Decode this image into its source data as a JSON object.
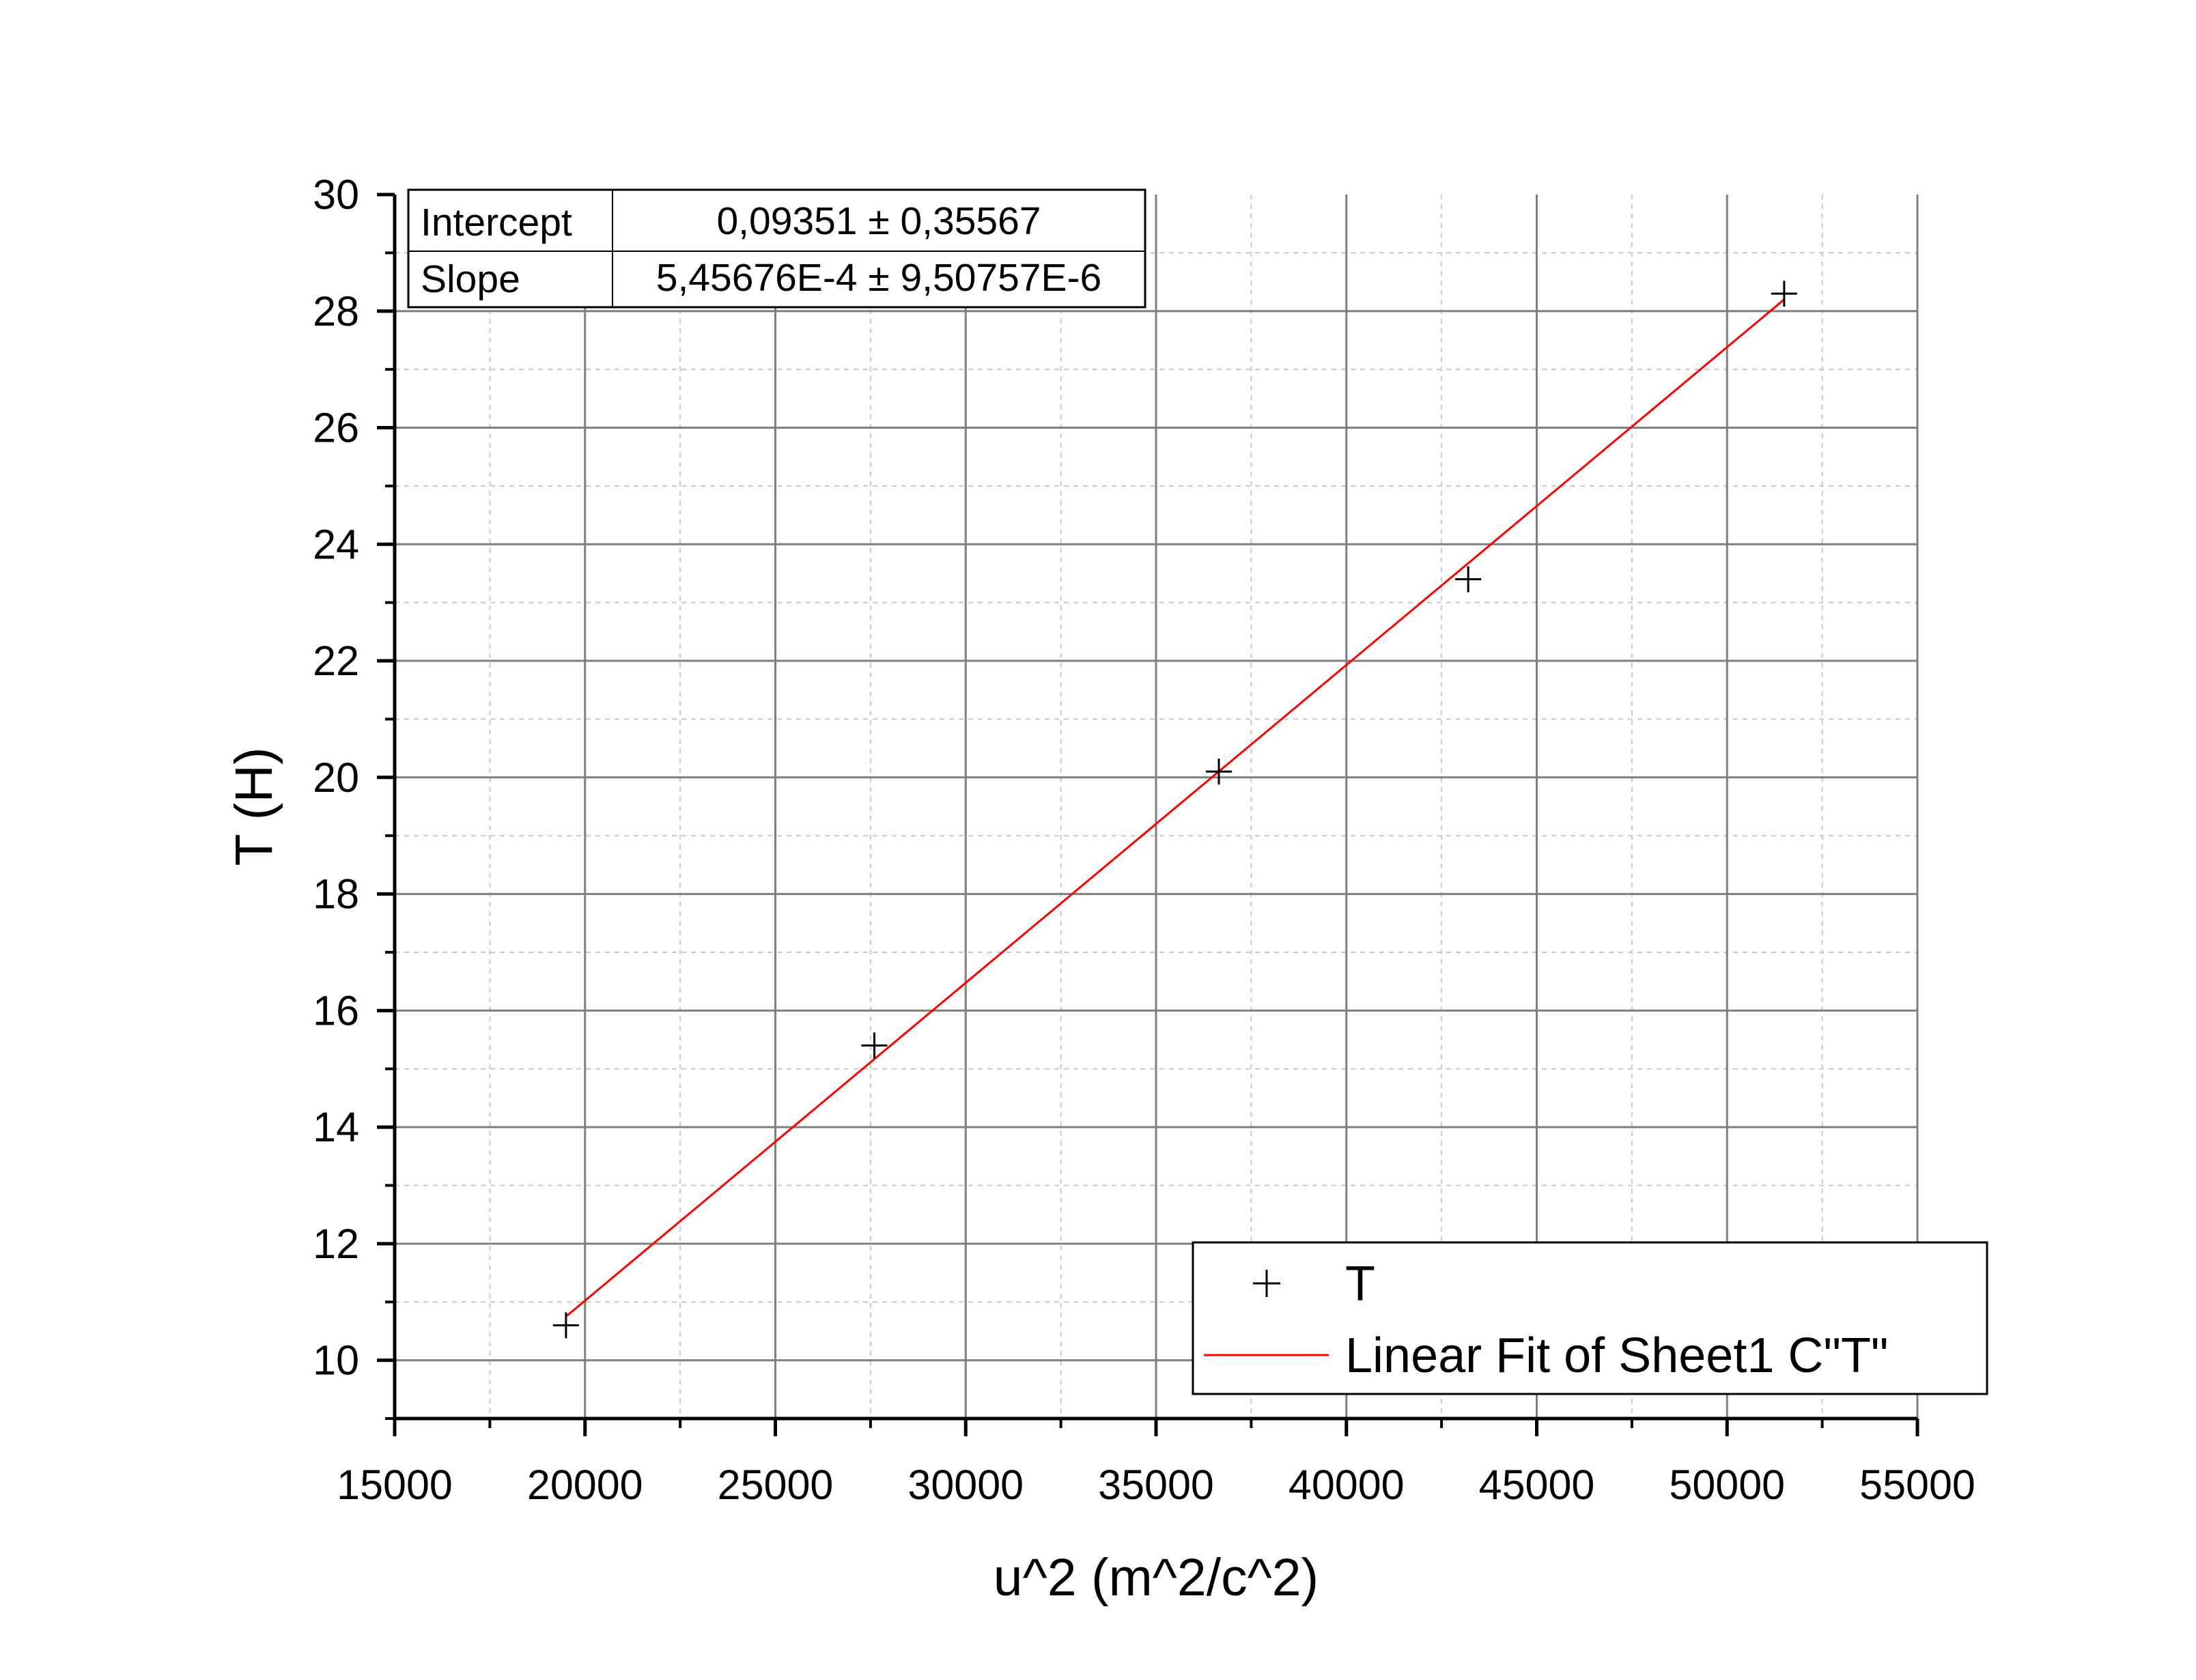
{
  "chart_data": {
    "type": "scatter",
    "xlabel": "u^2 (m^2/c^2)",
    "ylabel": "T (H)",
    "xlim": [
      15000,
      55000
    ],
    "ylim": [
      9,
      30
    ],
    "x_ticks": [
      15000,
      20000,
      25000,
      30000,
      35000,
      40000,
      45000,
      50000,
      55000
    ],
    "y_ticks": [
      10,
      12,
      14,
      16,
      18,
      20,
      22,
      24,
      26,
      28,
      30
    ],
    "grid": true,
    "series": [
      {
        "name": "T",
        "kind": "points",
        "marker": "plus",
        "color": "#000000",
        "x": [
          19500,
          27600,
          36650,
          43200,
          51500
        ],
        "y": [
          10.6,
          15.4,
          20.1,
          23.4,
          28.3
        ]
      },
      {
        "name": "Linear Fit of Sheet1 C\"T\"",
        "kind": "line",
        "color": "#ff0000",
        "x": [
          19500,
          51500
        ],
        "y": [
          10.75,
          28.2
        ]
      }
    ],
    "fit_stats": [
      {
        "label": "Intercept",
        "value": "0,09351 ± 0,35567"
      },
      {
        "label": "Slope",
        "value": "5,45676E-4 ± 9,50757E-6"
      }
    ],
    "legend_position": "bottom-right"
  }
}
